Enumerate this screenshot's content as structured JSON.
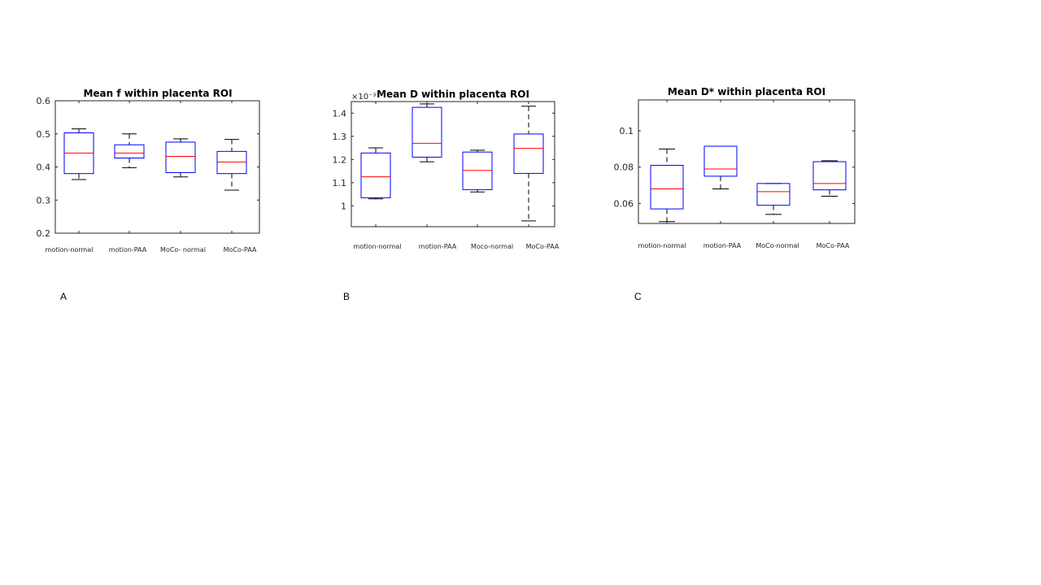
{
  "chart_data": [
    {
      "type": "boxplot",
      "panel_label": "A",
      "title": "Mean f within placenta ROI",
      "ylim": [
        0.2,
        0.6
      ],
      "yticks": [
        0.2,
        0.3,
        0.4,
        0.5,
        0.6
      ],
      "ytick_labels": [
        "0.2",
        "0.3",
        "0.4",
        "0.5",
        "0.6"
      ],
      "exponent_label": "",
      "categories": [
        "motion-normal",
        "motion-PAA",
        "MoCo- normal",
        "MoCo-PAA"
      ],
      "boxes": [
        {
          "min": 0.362,
          "q1": 0.38,
          "median": 0.442,
          "q3": 0.503,
          "max": 0.515
        },
        {
          "min": 0.398,
          "q1": 0.427,
          "median": 0.442,
          "q3": 0.467,
          "max": 0.5
        },
        {
          "min": 0.37,
          "q1": 0.383,
          "median": 0.432,
          "q3": 0.475,
          "max": 0.485
        },
        {
          "min": 0.33,
          "q1": 0.38,
          "median": 0.415,
          "q3": 0.447,
          "max": 0.483
        }
      ]
    },
    {
      "type": "boxplot",
      "panel_label": "B",
      "title": "Mean D within placenta ROI",
      "ylim": [
        0.91,
        1.45
      ],
      "yticks": [
        1.0,
        1.1,
        1.2,
        1.3,
        1.4
      ],
      "ytick_labels": [
        "1",
        "1.1",
        "1.2",
        "1.3",
        "1.4"
      ],
      "exponent_label": "×10⁻³",
      "categories": [
        "motion-normal",
        "motion-PAA",
        "Moco-normal",
        "MoCo-PAA"
      ],
      "boxes": [
        {
          "min": 1.03,
          "q1": 1.035,
          "median": 1.125,
          "q3": 1.228,
          "max": 1.25
        },
        {
          "min": 1.19,
          "q1": 1.21,
          "median": 1.27,
          "q3": 1.425,
          "max": 1.44
        },
        {
          "min": 1.06,
          "q1": 1.07,
          "median": 1.153,
          "q3": 1.232,
          "max": 1.24
        },
        {
          "min": 0.935,
          "q1": 1.14,
          "median": 1.248,
          "q3": 1.31,
          "max": 1.43
        }
      ]
    },
    {
      "type": "boxplot",
      "panel_label": "C",
      "title": "Mean D* within placenta ROI",
      "ylim": [
        0.049,
        0.117
      ],
      "yticks": [
        0.06,
        0.08,
        0.1
      ],
      "ytick_labels": [
        "0.06",
        "0.08",
        "0.1"
      ],
      "exponent_label": "",
      "categories": [
        "motion-normal",
        "motion-PAA",
        "MoCo-normal",
        "MoCo-PAA"
      ],
      "boxes": [
        {
          "min": 0.05,
          "q1": 0.057,
          "median": 0.068,
          "q3": 0.081,
          "max": 0.09
        },
        {
          "min": 0.068,
          "q1": 0.075,
          "median": 0.079,
          "q3": 0.0915,
          "max": 0.0915
        },
        {
          "min": 0.054,
          "q1": 0.059,
          "median": 0.0665,
          "q3": 0.071,
          "max": 0.071
        },
        {
          "min": 0.064,
          "q1": 0.0675,
          "median": 0.071,
          "q3": 0.083,
          "max": 0.0835
        }
      ]
    }
  ]
}
